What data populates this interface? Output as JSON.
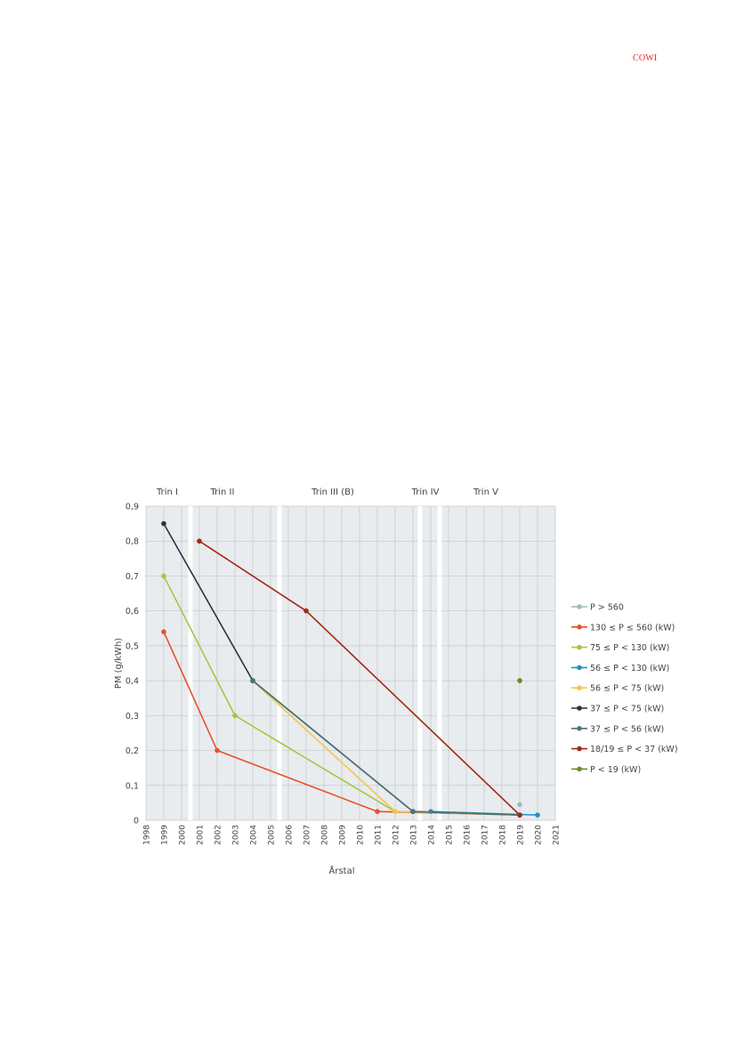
{
  "header": {
    "logo_text": "COWI"
  },
  "colors": {
    "plot_bg": "#e9ecef",
    "grid": "#c4c8cc",
    "band_separator": "#ffffff"
  },
  "chart_data": {
    "type": "line",
    "title": "",
    "xlabel": "Årstal",
    "ylabel": "PM (g/kWh)",
    "xlim": [
      1998,
      2021
    ],
    "ylim": [
      0,
      0.9
    ],
    "x_ticks": [
      "1998",
      "1999",
      "2000",
      "2001",
      "2002",
      "2003",
      "2004",
      "2005",
      "2006",
      "2007",
      "2008",
      "2009",
      "2010",
      "2011",
      "2012",
      "2013",
      "2014",
      "2015",
      "2016",
      "2017",
      "2018",
      "2019",
      "2020",
      "2021"
    ],
    "y_ticks": [
      "0",
      "0,1",
      "0,2",
      "0,3",
      "0,4",
      "0,5",
      "0,6",
      "0,7",
      "0,8",
      "0,9"
    ],
    "stage_labels": [
      {
        "label": "Trin I",
        "x": 1999.2
      },
      {
        "label": "Trin II",
        "x": 2002.3
      },
      {
        "label": "Trin III (B)",
        "x": 2008.5
      },
      {
        "label": "Trin IV",
        "x": 2013.7
      },
      {
        "label": "Trin V",
        "x": 2017.1
      }
    ],
    "stage_separators": [
      2000.5,
      2005.5,
      2013.4,
      2014.5
    ],
    "grid": true,
    "legend_position": "right",
    "series": [
      {
        "name": "P > 560",
        "color": "#9fb9bf",
        "x": [
          2019.0
        ],
        "y": [
          0.045
        ]
      },
      {
        "name": "130 ≤ P ≤ 560 (kW)",
        "color": "#e5522b",
        "x": [
          1999.0,
          2002.0,
          2011.0,
          2019.0
        ],
        "y": [
          0.54,
          0.2,
          0.025,
          0.015
        ]
      },
      {
        "name": "75 ≤ P < 130 (kW)",
        "color": "#a9c53f",
        "x": [
          1999.0,
          2003.0,
          2012.0,
          2019.0
        ],
        "y": [
          0.7,
          0.3,
          0.025,
          0.015
        ]
      },
      {
        "name": "56 ≤ P < 130 (kW)",
        "color": "#1c94c4",
        "x": [
          2014.0,
          2020.0
        ],
        "y": [
          0.025,
          0.015
        ]
      },
      {
        "name": "56 ≤ P < 75 (kW)",
        "color": "#f2c64a",
        "x": [
          2004.0,
          2012.0,
          2019.0
        ],
        "y": [
          0.4,
          0.025,
          0.015
        ]
      },
      {
        "name": "37 ≤ P < 75 (kW)",
        "color": "#2b3440",
        "x": [
          1999.0,
          2004.0,
          2013.0,
          2019.0
        ],
        "y": [
          0.85,
          0.4,
          0.025,
          0.015
        ]
      },
      {
        "name": "37 ≤ P < 56 (kW)",
        "color": "#4e7576",
        "x": [
          2004.0,
          2013.0,
          2019.0
        ],
        "y": [
          0.4,
          0.025,
          0.015
        ]
      },
      {
        "name": "18/19 ≤ P < 37 (kW)",
        "color": "#a22a17",
        "x": [
          2001.0,
          2007.0,
          2019.0
        ],
        "y": [
          0.8,
          0.6,
          0.015
        ]
      },
      {
        "name": "P < 19 (kW)",
        "color": "#6a8a2a",
        "x": [
          2019.0
        ],
        "y": [
          0.4
        ]
      }
    ]
  }
}
